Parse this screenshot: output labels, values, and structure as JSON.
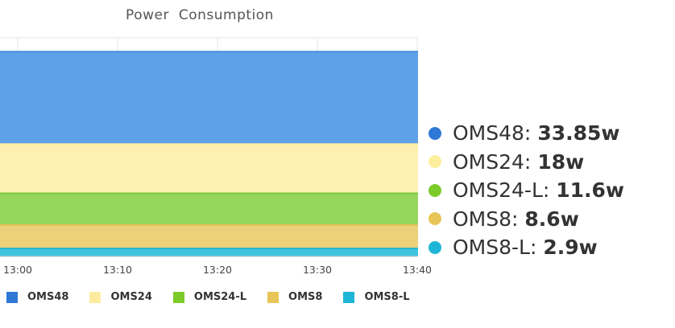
{
  "chart_data": {
    "type": "area",
    "stacked": true,
    "title": "Power Consumption",
    "x": [
      "13:00",
      "13:10",
      "13:20",
      "13:30",
      "13:40"
    ],
    "x_ticks": [
      "13:00",
      "13:10",
      "13:20",
      "13:30",
      "13:40"
    ],
    "xlabel": "",
    "ylabel": "",
    "ylim": [
      0,
      80
    ],
    "grid": true,
    "series": [
      {
        "name": "OMS48",
        "color": "#4a8fe0",
        "fill": "#5fa1e8",
        "values": [
          33.85,
          33.85,
          33.85,
          33.85,
          33.85
        ]
      },
      {
        "name": "OMS24",
        "color": "#fdec9f",
        "fill": "#fef0b0",
        "values": [
          18,
          18,
          18,
          18,
          18
        ]
      },
      {
        "name": "OMS24-L",
        "color": "#7cc63c",
        "fill": "#96d65d",
        "values": [
          11.6,
          11.6,
          11.6,
          11.6,
          11.6
        ]
      },
      {
        "name": "OMS8",
        "color": "#e6c35a",
        "fill": "#ecd07a",
        "values": [
          8.6,
          8.6,
          8.6,
          8.6,
          8.6
        ]
      },
      {
        "name": "OMS8-L",
        "color": "#1fb5d6",
        "fill": "#41c2de",
        "values": [
          2.9,
          2.9,
          2.9,
          2.9,
          2.9
        ]
      }
    ],
    "legend_position": "bottom"
  },
  "side_legend": [
    {
      "name": "OMS48: ",
      "value": "33.85w",
      "color": "#2f78d6"
    },
    {
      "name": "OMS24: ",
      "value": "18w",
      "color": "#fcee9c"
    },
    {
      "name": "OMS24-L: ",
      "value": "11.6w",
      "color": "#7ccb2a"
    },
    {
      "name": "OMS8: ",
      "value": "8.6w",
      "color": "#e7c556"
    },
    {
      "name": "OMS8-L: ",
      "value": "2.9w",
      "color": "#1fb5d6"
    }
  ],
  "bottom_legend": [
    {
      "name": "OMS48",
      "color": "#2f78d6"
    },
    {
      "name": "OMS24",
      "color": "#fdec9f"
    },
    {
      "name": "OMS24-L",
      "color": "#7ccb2a"
    },
    {
      "name": "OMS8",
      "color": "#e7c556"
    },
    {
      "name": "OMS8-L",
      "color": "#1fb5d6"
    }
  ]
}
